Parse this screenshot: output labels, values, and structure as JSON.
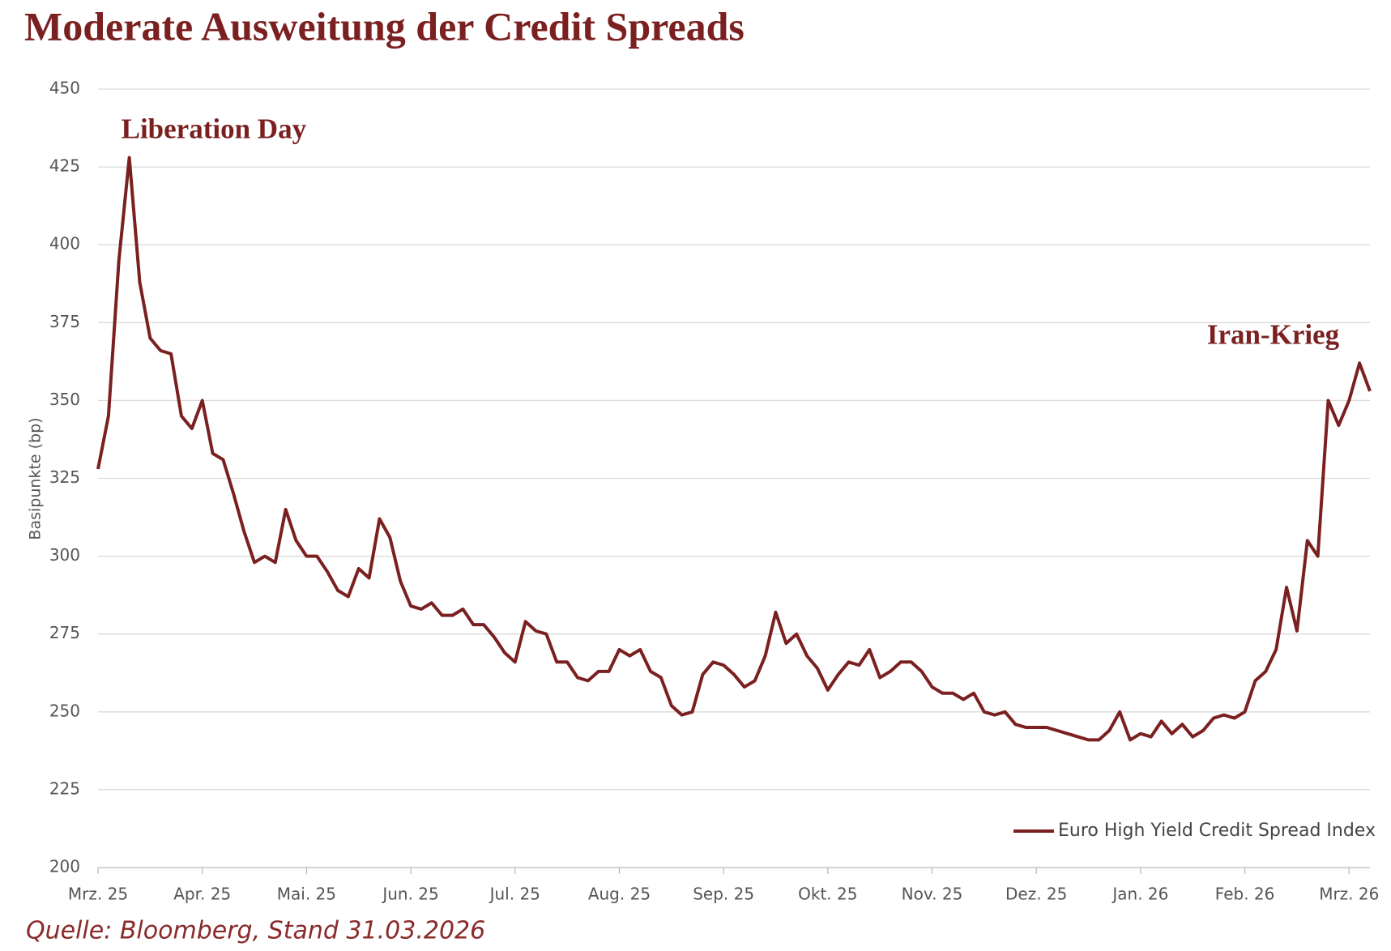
{
  "chart_data": {
    "type": "line",
    "title": "Moderate Ausweitung der Credit Spreads",
    "y_label": "Basipunkte (bp)",
    "source": "Quelle: Bloomberg, Stand 31.03.2026",
    "annotations": [
      {
        "text": "Liberation Day",
        "index": 3
      },
      {
        "text": "Iran-Krieg",
        "index": 121
      }
    ],
    "categories": [
      "Mrz. 25",
      null,
      null,
      null,
      null,
      null,
      null,
      null,
      null,
      null,
      "Apr. 25",
      null,
      null,
      null,
      null,
      null,
      null,
      null,
      null,
      null,
      "Mai. 25",
      null,
      null,
      null,
      null,
      null,
      null,
      null,
      null,
      null,
      "Jun. 25",
      null,
      null,
      null,
      null,
      null,
      null,
      null,
      null,
      null,
      "Jul. 25",
      null,
      null,
      null,
      null,
      null,
      null,
      null,
      null,
      null,
      "Aug. 25",
      null,
      null,
      null,
      null,
      null,
      null,
      null,
      null,
      null,
      "Sep. 25",
      null,
      null,
      null,
      null,
      null,
      null,
      null,
      null,
      null,
      "Okt. 25",
      null,
      null,
      null,
      null,
      null,
      null,
      null,
      null,
      null,
      "Nov. 25",
      null,
      null,
      null,
      null,
      null,
      null,
      null,
      null,
      null,
      "Dez. 25",
      null,
      null,
      null,
      null,
      null,
      null,
      null,
      null,
      null,
      "Jan. 26",
      null,
      null,
      null,
      null,
      null,
      null,
      null,
      null,
      null,
      "Feb. 26",
      null,
      null,
      null,
      null,
      null,
      null,
      null,
      null,
      null,
      "Mrz. 26",
      null,
      null
    ],
    "series": [
      {
        "name": "Euro High Yield Credit Spread Index",
        "color": "#7b2020",
        "values": [
          328,
          345,
          395,
          428,
          388,
          370,
          366,
          365,
          345,
          341,
          350,
          333,
          331,
          320,
          308,
          298,
          300,
          298,
          315,
          305,
          300,
          300,
          295,
          289,
          287,
          296,
          293,
          312,
          306,
          292,
          284,
          283,
          285,
          281,
          281,
          283,
          278,
          278,
          274,
          269,
          266,
          279,
          276,
          275,
          266,
          266,
          261,
          260,
          263,
          263,
          270,
          268,
          270,
          263,
          261,
          252,
          249,
          250,
          262,
          266,
          265,
          262,
          258,
          260,
          268,
          282,
          272,
          275,
          268,
          264,
          257,
          262,
          266,
          265,
          270,
          261,
          263,
          266,
          266,
          263,
          258,
          256,
          256,
          254,
          256,
          250,
          249,
          250,
          246,
          245,
          245,
          245,
          244,
          243,
          242,
          241,
          241,
          244,
          250,
          241,
          243,
          242,
          247,
          243,
          246,
          242,
          244,
          248,
          249,
          248,
          250,
          260,
          263,
          270,
          290,
          276,
          305,
          300,
          350,
          342,
          350,
          362,
          353
        ]
      }
    ],
    "ylim": [
      200,
      450
    ],
    "yticks": [
      200,
      225,
      250,
      275,
      300,
      325,
      350,
      375,
      400,
      425,
      450
    ],
    "grid": true,
    "legend": "lower right"
  }
}
